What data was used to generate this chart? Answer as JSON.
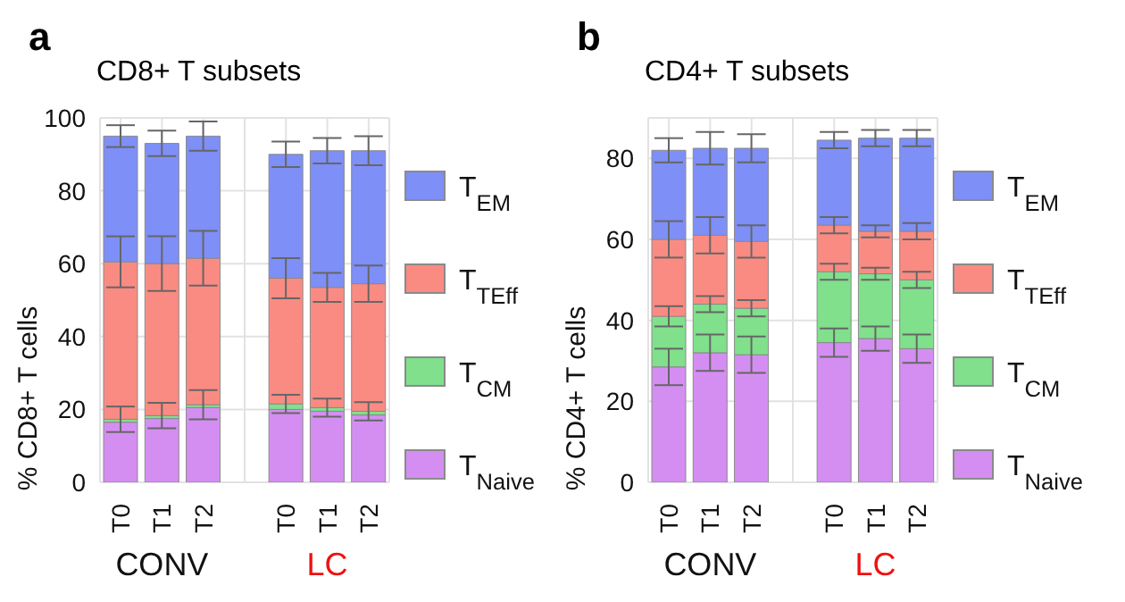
{
  "chart_data": [
    {
      "type": "bar",
      "stacked": true,
      "title": "CD8+ T subsets",
      "ylabel": "% CD8+ T cells",
      "annotations": [
        "a",
        "CONV",
        "LC"
      ],
      "categories": [
        "T0",
        "T1",
        "T2",
        null,
        "T0",
        "T1",
        "T2"
      ],
      "ylim": [
        0,
        100
      ],
      "yticks": [
        0,
        20,
        40,
        60,
        80,
        100
      ],
      "grid": true,
      "legend": "right",
      "series": [
        {
          "name": "T$_{Naive}$",
          "color": "#d48ef2",
          "values": [
            16.5,
            17.5,
            20.5,
            null,
            20,
            19.5,
            18.5
          ]
        },
        {
          "name": "T$_{CM}$",
          "color": "#80e08c",
          "values": [
            0.8,
            0.8,
            0.8,
            null,
            1.5,
            1,
            1
          ],
          "errors": [
            3.5,
            3.5,
            4,
            null,
            2.5,
            2.5,
            2.5
          ]
        },
        {
          "name": "T$_{TEff}$",
          "color": "#fa8b82",
          "values": [
            43.2,
            41.7,
            40.2,
            null,
            34.5,
            33,
            35
          ],
          "errors": [
            7,
            7.5,
            7.5,
            null,
            5.5,
            4,
            5
          ]
        },
        {
          "name": "T$_{EM}$",
          "color": "#7e8ff7",
          "values": [
            34.5,
            33,
            33.5,
            null,
            34,
            37.5,
            36.5
          ],
          "errors": [
            3,
            3.5,
            4,
            null,
            3.5,
            3.5,
            4
          ]
        }
      ]
    },
    {
      "type": "bar",
      "stacked": true,
      "title": "CD4+ T subsets",
      "ylabel": "% CD4+ T cells",
      "annotations": [
        "b",
        "CONV",
        "LC"
      ],
      "categories": [
        "T0",
        "T1",
        "T2",
        null,
        "T0",
        "T1",
        "T2"
      ],
      "ylim": [
        0,
        90
      ],
      "yticks": [
        0,
        20,
        40,
        60,
        80
      ],
      "grid": true,
      "legend": "right",
      "series": [
        {
          "name": "T$_{Naive}$",
          "color": "#d48ef2",
          "values": [
            28.5,
            32,
            31.5,
            null,
            34.5,
            35.5,
            33
          ],
          "errors": [
            4.5,
            4.5,
            4.5,
            null,
            3.5,
            3,
            3.5
          ]
        },
        {
          "name": "T$_{CM}$",
          "color": "#80e08c",
          "values": [
            12.5,
            12,
            11.5,
            null,
            17.5,
            16,
            17
          ],
          "errors": [
            2.5,
            2,
            2,
            null,
            2,
            1.5,
            2
          ]
        },
        {
          "name": "T$_{TEff}$",
          "color": "#fa8b82",
          "values": [
            19,
            17,
            16.5,
            null,
            11.5,
            10.5,
            12
          ],
          "errors": [
            4.5,
            4.5,
            4,
            null,
            2,
            1.5,
            2
          ]
        },
        {
          "name": "T$_{EM}$",
          "color": "#7e8ff7",
          "values": [
            22,
            21.5,
            23,
            null,
            21,
            23,
            23
          ],
          "errors": [
            3,
            4,
            3.5,
            null,
            2,
            2,
            2
          ]
        }
      ]
    }
  ]
}
